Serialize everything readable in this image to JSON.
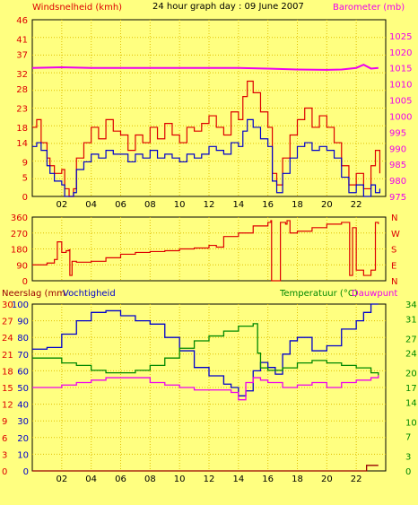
{
  "header": {
    "left_label": "Windsnelheid (kmh)",
    "title": "24 hour graph day : 09 June 2007",
    "right_label": "Barometer (mb)"
  },
  "colors": {
    "background": "#ffff80",
    "plot_bg": "#ffff80",
    "grid": "#e0c000",
    "red": "#dd0000",
    "blue": "#0000cc",
    "magenta": "#ee00ee",
    "green": "#008800",
    "dark_red": "#990000"
  },
  "x_ticks": [
    "02",
    "04",
    "06",
    "08",
    "10",
    "12",
    "14",
    "16",
    "18",
    "20",
    "22"
  ],
  "chart_data": [
    {
      "type": "line",
      "name": "wind-barometer",
      "title": "24 hour graph day : 09 June 2007",
      "ylabel_left": "Windsnelheid (kmh)",
      "ylabel_right": "Barometer (mb)",
      "xlim": [
        0,
        24
      ],
      "ylim_left": [
        0,
        46
      ],
      "ylim_right": [
        975,
        1030
      ],
      "left_ticks": [
        0,
        5,
        9,
        14,
        18,
        23,
        28,
        32,
        37,
        41,
        46
      ],
      "right_ticks": [
        975,
        980,
        985,
        990,
        995,
        1000,
        1005,
        1010,
        1015,
        1020,
        1025
      ],
      "series": [
        {
          "key": "gust",
          "axis": "left",
          "color": "#dd0000",
          "x": [
            0,
            0.3,
            0.6,
            1,
            1.2,
            1.5,
            2,
            2.2,
            2.5,
            2.8,
            3,
            3.5,
            4,
            4.5,
            5,
            5.5,
            6,
            6.5,
            7,
            7.5,
            8,
            8.5,
            9,
            9.5,
            10,
            10.5,
            11,
            11.5,
            12,
            12.5,
            13,
            13.5,
            14,
            14.3,
            14.6,
            15,
            15.5,
            16,
            16.3,
            16.6,
            17,
            17.5,
            18,
            18.5,
            19,
            19.5,
            20,
            20.5,
            21,
            21.5,
            22,
            22.5,
            23,
            23.3,
            23.6
          ],
          "values": [
            18,
            20,
            14,
            10,
            8,
            6,
            7,
            2,
            0,
            2,
            10,
            14,
            18,
            15,
            20,
            17,
            16,
            12,
            16,
            14,
            18,
            15,
            19,
            16,
            14,
            18,
            17,
            19,
            21,
            18,
            16,
            22,
            20,
            26,
            30,
            27,
            22,
            18,
            6,
            3,
            10,
            16,
            20,
            23,
            18,
            21,
            18,
            14,
            8,
            3,
            6,
            2,
            8,
            12,
            6
          ]
        },
        {
          "key": "wind",
          "axis": "left",
          "color": "#0000cc",
          "x": [
            0,
            0.3,
            0.6,
            1,
            1.2,
            1.5,
            2,
            2.2,
            2.5,
            2.8,
            3,
            3.5,
            4,
            4.5,
            5,
            5.5,
            6,
            6.5,
            7,
            7.5,
            8,
            8.5,
            9,
            9.5,
            10,
            10.5,
            11,
            11.5,
            12,
            12.5,
            13,
            13.5,
            14,
            14.3,
            14.6,
            15,
            15.5,
            16,
            16.3,
            16.6,
            17,
            17.5,
            18,
            18.5,
            19,
            19.5,
            20,
            20.5,
            21,
            21.5,
            22,
            22.5,
            23,
            23.3,
            23.6
          ],
          "values": [
            13,
            14,
            12,
            8,
            6,
            4,
            3,
            0,
            0,
            1,
            7,
            9,
            11,
            10,
            12,
            11,
            11,
            9,
            11,
            10,
            12,
            10,
            11,
            10,
            9,
            11,
            10,
            11,
            13,
            12,
            11,
            14,
            13,
            17,
            20,
            18,
            15,
            13,
            4,
            1,
            6,
            10,
            13,
            14,
            12,
            13,
            12,
            10,
            5,
            1,
            3,
            0,
            3,
            1,
            2
          ]
        },
        {
          "key": "barometer",
          "axis": "right",
          "color": "#ee00ee",
          "x": [
            0,
            2,
            4,
            6,
            8,
            10,
            12,
            14,
            16,
            18,
            20,
            21,
            22,
            22.5,
            23,
            23.5
          ],
          "values": [
            1015,
            1015.2,
            1015,
            1015,
            1015,
            1015,
            1015,
            1015,
            1014.8,
            1014.5,
            1014.4,
            1014.5,
            1015,
            1016,
            1014.8,
            1015
          ]
        }
      ]
    },
    {
      "type": "line",
      "name": "wind-direction",
      "xlim": [
        0,
        24
      ],
      "ylim": [
        0,
        360
      ],
      "left_ticks": [
        0,
        90,
        180,
        270,
        360
      ],
      "right_ticks": [
        "N",
        "W",
        "S",
        "E",
        "N"
      ],
      "series": [
        {
          "key": "direction",
          "color": "#dd0000",
          "x": [
            0,
            1,
            1.5,
            1.7,
            2,
            2.3,
            2.5,
            2.55,
            2.7,
            3,
            4,
            5,
            6,
            7,
            8,
            9,
            10,
            11,
            12,
            12.5,
            13,
            14,
            15,
            16,
            16.2,
            16.25,
            16.8,
            16.85,
            17,
            17.2,
            17.3,
            17.5,
            18,
            19,
            20,
            21,
            21.5,
            21.55,
            21.7,
            21.75,
            22,
            22.5,
            23,
            23.3,
            23.5
          ],
          "values": [
            90,
            100,
            120,
            220,
            160,
            170,
            175,
            30,
            110,
            105,
            110,
            130,
            150,
            160,
            165,
            170,
            180,
            185,
            200,
            190,
            250,
            270,
            310,
            330,
            340,
            0,
            0,
            330,
            330,
            320,
            340,
            270,
            280,
            300,
            320,
            330,
            330,
            30,
            30,
            300,
            60,
            30,
            60,
            330,
            320
          ]
        }
      ]
    },
    {
      "type": "line",
      "name": "rain-humidity-temperature",
      "ylabel_left_1": "Neerslag (mm",
      "ylabel_left_2": "Vochtigheid",
      "ylabel_right_1": "Temperatuur (°C)",
      "ylabel_right_2": "Dauwpunt",
      "xlim": [
        0,
        24
      ],
      "rain_ticks": [
        0,
        3,
        6,
        9,
        12,
        15,
        18,
        21,
        24,
        27,
        30
      ],
      "humidity_ticks": [
        0,
        10,
        20,
        30,
        40,
        50,
        60,
        70,
        80,
        90,
        100
      ],
      "temperature_ticks": [
        0,
        3,
        7,
        10,
        14,
        17,
        20,
        24,
        27,
        31,
        34
      ],
      "ylim_rain": [
        0,
        30
      ],
      "ylim_humidity": [
        0,
        100
      ],
      "ylim_temperature": [
        0,
        34
      ],
      "series": [
        {
          "key": "humidity",
          "axis": "humidity",
          "color": "#0000cc",
          "x": [
            0,
            1,
            2,
            3,
            4,
            5,
            6,
            7,
            8,
            9,
            10,
            11,
            12,
            13,
            13.5,
            14,
            14.5,
            15,
            15.5,
            16,
            16.5,
            17,
            17.5,
            18,
            19,
            20,
            21,
            22,
            22.5,
            23,
            23.5
          ],
          "values": [
            73,
            74,
            82,
            90,
            95,
            96,
            93,
            90,
            88,
            80,
            72,
            62,
            57,
            52,
            50,
            45,
            48,
            60,
            65,
            62,
            58,
            70,
            78,
            80,
            72,
            75,
            85,
            90,
            95,
            100,
            100
          ]
        },
        {
          "key": "temperature",
          "axis": "temperature",
          "color": "#008800",
          "x": [
            0,
            1,
            2,
            3,
            4,
            5,
            6,
            7,
            8,
            9,
            10,
            11,
            12,
            13,
            14,
            15,
            15.3,
            15.5,
            16,
            17,
            18,
            19,
            20,
            21,
            22,
            23,
            23.5
          ],
          "values": [
            23,
            23,
            22,
            21.5,
            20.5,
            20,
            20,
            20.5,
            21.5,
            23,
            25,
            26.5,
            27.5,
            28.5,
            29.5,
            30,
            24,
            21,
            20.5,
            21,
            22,
            22.5,
            22,
            21.5,
            21,
            20,
            19.5
          ]
        },
        {
          "key": "dewpoint",
          "axis": "temperature",
          "color": "#ee00ee",
          "x": [
            0,
            1,
            2,
            3,
            4,
            5,
            6,
            7,
            8,
            9,
            10,
            11,
            12,
            13,
            13.5,
            14,
            14.5,
            15,
            15.5,
            16,
            17,
            18,
            19,
            20,
            21,
            22,
            23,
            23.5
          ],
          "values": [
            17,
            17,
            17.5,
            18,
            18.5,
            19,
            19,
            19,
            18,
            17.5,
            17,
            16.5,
            16.5,
            16.5,
            16,
            14.5,
            18,
            19,
            18.5,
            18,
            17,
            17.5,
            18,
            17,
            18,
            18.5,
            19,
            19.5
          ]
        },
        {
          "key": "rain",
          "axis": "rain",
          "color": "#990000",
          "x": [
            0,
            22.5,
            22.7,
            23,
            23.5
          ],
          "values": [
            0,
            0,
            1,
            1,
            1
          ]
        }
      ]
    }
  ]
}
